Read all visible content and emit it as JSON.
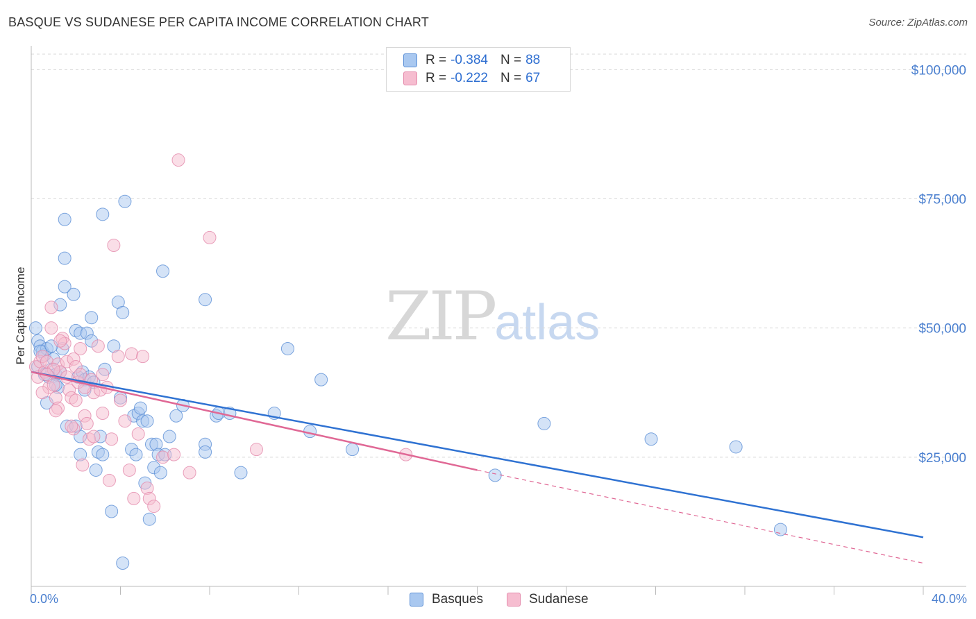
{
  "title": "BASQUE VS SUDANESE PER CAPITA INCOME CORRELATION CHART",
  "source": "Source: ZipAtlas.com",
  "watermark": {
    "zip": "ZIP",
    "atlas": "atlas"
  },
  "legend": {
    "r_label": "R =",
    "n_label": "N =",
    "rows": [
      {
        "r": "-0.384",
        "n": "88"
      },
      {
        "r": "-0.222",
        "n": "67"
      }
    ]
  },
  "colors": {
    "basques_fill": "#a9c8f0",
    "basques_stroke": "#5b8fd6",
    "basques_line": "#2f72d2",
    "sudanese_fill": "#f6bdd0",
    "sudanese_stroke": "#e48aab",
    "sudanese_line": "#e06895",
    "grid": "#d8d8d8",
    "tick_text": "#4a7fcf"
  },
  "chart_data": {
    "type": "scatter",
    "title": "BASQUE VS SUDANESE PER CAPITA INCOME CORRELATION CHART",
    "xlabel": "",
    "ylabel": "Per Capita Income",
    "xlim": [
      0,
      40
    ],
    "ylim": [
      0,
      103000
    ],
    "x_tick_labels": [
      "0.0%",
      "40.0%"
    ],
    "y_ticks": [
      25000,
      50000,
      75000,
      100000
    ],
    "y_tick_labels": [
      "$25,000",
      "$50,000",
      "$75,000",
      "$100,000"
    ],
    "grid": true,
    "legend_position": "top-center",
    "series": [
      {
        "name": "Basques",
        "r": -0.384,
        "n": 88,
        "trend": {
          "x": [
            0,
            40
          ],
          "y": [
            41500,
            9500
          ]
        },
        "points": [
          [
            0.2,
            50000
          ],
          [
            0.3,
            47500
          ],
          [
            0.4,
            46500
          ],
          [
            0.5,
            45500
          ],
          [
            0.6,
            44800
          ],
          [
            0.7,
            46000
          ],
          [
            0.3,
            42500
          ],
          [
            0.9,
            42000
          ],
          [
            1.0,
            44000
          ],
          [
            1.1,
            41000
          ],
          [
            0.8,
            40500
          ],
          [
            1.2,
            38500
          ],
          [
            0.7,
            35500
          ],
          [
            1.3,
            54500
          ],
          [
            1.4,
            46000
          ],
          [
            1.3,
            41500
          ],
          [
            1.5,
            58000
          ],
          [
            1.5,
            63500
          ],
          [
            1.5,
            71000
          ],
          [
            1.6,
            31000
          ],
          [
            1.9,
            56500
          ],
          [
            2.0,
            49500
          ],
          [
            2.1,
            40500
          ],
          [
            2.2,
            29000
          ],
          [
            2.2,
            25500
          ],
          [
            2.3,
            41500
          ],
          [
            2.2,
            49000
          ],
          [
            2.4,
            40000
          ],
          [
            2.5,
            49000
          ],
          [
            2.6,
            40500
          ],
          [
            2.7,
            47500
          ],
          [
            2.7,
            52000
          ],
          [
            2.8,
            39500
          ],
          [
            2.9,
            22500
          ],
          [
            3.0,
            26000
          ],
          [
            3.1,
            29000
          ],
          [
            3.2,
            25500
          ],
          [
            3.2,
            72000
          ],
          [
            3.3,
            42000
          ],
          [
            3.6,
            14500
          ],
          [
            3.7,
            46500
          ],
          [
            3.9,
            55000
          ],
          [
            4.0,
            36500
          ],
          [
            4.1,
            53000
          ],
          [
            4.2,
            74500
          ],
          [
            4.1,
            4500
          ],
          [
            4.5,
            26500
          ],
          [
            4.6,
            33000
          ],
          [
            4.7,
            25500
          ],
          [
            4.8,
            33500
          ],
          [
            4.9,
            34500
          ],
          [
            5.0,
            32000
          ],
          [
            5.1,
            20000
          ],
          [
            5.2,
            32000
          ],
          [
            5.3,
            13000
          ],
          [
            5.4,
            27500
          ],
          [
            5.5,
            23000
          ],
          [
            5.6,
            27500
          ],
          [
            5.7,
            25500
          ],
          [
            5.8,
            22000
          ],
          [
            5.9,
            61000
          ],
          [
            6.0,
            25500
          ],
          [
            6.2,
            29000
          ],
          [
            6.5,
            33000
          ],
          [
            6.8,
            35000
          ],
          [
            7.8,
            55500
          ],
          [
            7.8,
            27500
          ],
          [
            7.8,
            26000
          ],
          [
            8.3,
            33000
          ],
          [
            8.4,
            33500
          ],
          [
            8.9,
            33500
          ],
          [
            9.4,
            22000
          ],
          [
            10.9,
            33500
          ],
          [
            11.5,
            46000
          ],
          [
            12.5,
            30000
          ],
          [
            13.0,
            40000
          ],
          [
            14.4,
            26500
          ],
          [
            20.8,
            21500
          ],
          [
            23.0,
            31500
          ],
          [
            27.8,
            28500
          ],
          [
            31.6,
            27000
          ],
          [
            33.6,
            11000
          ],
          [
            0.4,
            45500
          ],
          [
            0.6,
            41000
          ],
          [
            1.1,
            39000
          ],
          [
            2.0,
            31000
          ],
          [
            0.9,
            46500
          ],
          [
            2.4,
            38000
          ]
        ]
      },
      {
        "name": "Sudanese",
        "r": -0.222,
        "n": 67,
        "trend": {
          "x": [
            0,
            20
          ],
          "y": [
            41500,
            22500
          ]
        },
        "trend_extension": {
          "x": [
            20,
            40
          ],
          "y": [
            22500,
            4500
          ]
        },
        "points": [
          [
            0.2,
            42500
          ],
          [
            0.3,
            40500
          ],
          [
            0.4,
            43500
          ],
          [
            0.5,
            44500
          ],
          [
            0.6,
            41500
          ],
          [
            0.7,
            43500
          ],
          [
            0.8,
            38500
          ],
          [
            0.9,
            54000
          ],
          [
            0.9,
            50000
          ],
          [
            1.0,
            39000
          ],
          [
            1.1,
            36500
          ],
          [
            1.2,
            34500
          ],
          [
            1.2,
            43000
          ],
          [
            1.3,
            41500
          ],
          [
            1.4,
            48000
          ],
          [
            1.5,
            47000
          ],
          [
            1.6,
            43500
          ],
          [
            1.7,
            38000
          ],
          [
            1.8,
            36500
          ],
          [
            1.9,
            30500
          ],
          [
            1.9,
            44000
          ],
          [
            2.0,
            42500
          ],
          [
            2.1,
            39500
          ],
          [
            2.2,
            41000
          ],
          [
            2.3,
            23500
          ],
          [
            2.4,
            33000
          ],
          [
            2.5,
            31500
          ],
          [
            2.6,
            28500
          ],
          [
            2.7,
            40000
          ],
          [
            2.8,
            37500
          ],
          [
            2.8,
            29000
          ],
          [
            3.0,
            46500
          ],
          [
            3.1,
            38000
          ],
          [
            3.2,
            41000
          ],
          [
            3.4,
            38500
          ],
          [
            3.5,
            20500
          ],
          [
            3.6,
            28500
          ],
          [
            3.7,
            66000
          ],
          [
            3.9,
            44500
          ],
          [
            4.0,
            36000
          ],
          [
            4.2,
            32000
          ],
          [
            4.4,
            22500
          ],
          [
            4.5,
            45000
          ],
          [
            4.6,
            17000
          ],
          [
            4.8,
            29500
          ],
          [
            5.0,
            44500
          ],
          [
            5.2,
            19000
          ],
          [
            5.3,
            17000
          ],
          [
            5.5,
            15500
          ],
          [
            5.9,
            25000
          ],
          [
            6.4,
            25500
          ],
          [
            6.6,
            82500
          ],
          [
            7.1,
            22000
          ],
          [
            8.0,
            67500
          ],
          [
            10.1,
            26500
          ],
          [
            16.8,
            25500
          ],
          [
            0.5,
            37500
          ],
          [
            1.0,
            42000
          ],
          [
            1.3,
            47500
          ],
          [
            1.6,
            40500
          ],
          [
            2.0,
            36000
          ],
          [
            2.4,
            38500
          ],
          [
            3.2,
            33500
          ],
          [
            1.1,
            34000
          ],
          [
            0.7,
            41000
          ],
          [
            2.2,
            46000
          ],
          [
            1.8,
            31000
          ]
        ]
      }
    ]
  },
  "bottom_legend": [
    {
      "label": "Basques"
    },
    {
      "label": "Sudanese"
    }
  ]
}
